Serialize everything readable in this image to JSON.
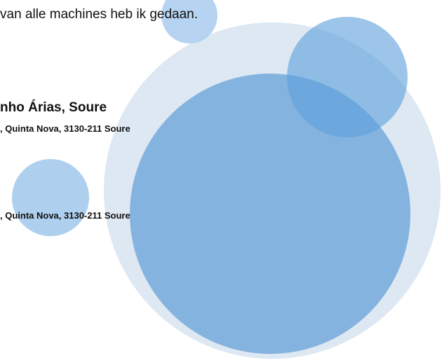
{
  "document": {
    "intro_line": "van alle machines heb ik gedaan.",
    "heading": "nho Árias, Soure",
    "address_1": ", Quinta Nova, 3130-211 Soure",
    "address_2": ", Quinta Nova, 3130-211 Soure"
  }
}
